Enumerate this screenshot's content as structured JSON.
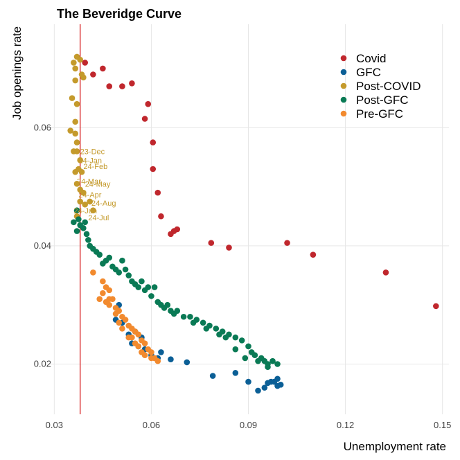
{
  "chart_data": {
    "type": "scatter",
    "title": "The Beveridge Curve",
    "xlabel": "Unemployment rate",
    "ylabel": "Job openings rate",
    "xlim": [
      0.0265,
      0.152
    ],
    "ylim": [
      0.0115,
      0.0775
    ],
    "xticks": [
      "0.03",
      "0.06",
      "0.09",
      "0.12",
      "0.15"
    ],
    "xtick_values": [
      0.03,
      0.06,
      0.09,
      0.12,
      0.15
    ],
    "yticks": [
      "0.02",
      "0.04",
      "0.06"
    ],
    "ytick_values": [
      0.02,
      0.04,
      0.06
    ],
    "grid": true,
    "legend_position": "top-right",
    "reference_line": {
      "x": 0.038,
      "color": "#d7191c"
    },
    "series": [
      {
        "name": "Covid",
        "color": "#c0272d",
        "points": [
          [
            0.0395,
            0.071
          ],
          [
            0.042,
            0.069
          ],
          [
            0.045,
            0.07
          ],
          [
            0.047,
            0.067
          ],
          [
            0.051,
            0.067
          ],
          [
            0.054,
            0.0675
          ],
          [
            0.059,
            0.064
          ],
          [
            0.058,
            0.0615
          ],
          [
            0.0605,
            0.0575
          ],
          [
            0.0605,
            0.053
          ],
          [
            0.062,
            0.049
          ],
          [
            0.063,
            0.045
          ],
          [
            0.067,
            0.0425
          ],
          [
            0.068,
            0.0428
          ],
          [
            0.066,
            0.042
          ],
          [
            0.0785,
            0.0405
          ],
          [
            0.084,
            0.0397
          ],
          [
            0.102,
            0.0405
          ],
          [
            0.11,
            0.0385
          ],
          [
            0.1325,
            0.0355
          ],
          [
            0.148,
            0.0298
          ]
        ]
      },
      {
        "name": "GFC",
        "color": "#0b5f96",
        "points": [
          [
            0.05,
            0.03
          ],
          [
            0.049,
            0.0275
          ],
          [
            0.051,
            0.027
          ],
          [
            0.053,
            0.025
          ],
          [
            0.055,
            0.0255
          ],
          [
            0.057,
            0.0245
          ],
          [
            0.054,
            0.0235
          ],
          [
            0.056,
            0.023
          ],
          [
            0.058,
            0.0225
          ],
          [
            0.06,
            0.0215
          ],
          [
            0.063,
            0.022
          ],
          [
            0.062,
            0.021
          ],
          [
            0.066,
            0.0208
          ],
          [
            0.071,
            0.0203
          ],
          [
            0.079,
            0.018
          ],
          [
            0.086,
            0.0185
          ],
          [
            0.09,
            0.017
          ],
          [
            0.093,
            0.0155
          ],
          [
            0.095,
            0.016
          ],
          [
            0.097,
            0.017
          ],
          [
            0.099,
            0.0175
          ],
          [
            0.1,
            0.0165
          ],
          [
            0.096,
            0.0168
          ],
          [
            0.098,
            0.017
          ],
          [
            0.099,
            0.0163
          ]
        ]
      },
      {
        "name": "Post-COVID",
        "color": "#c49a2c",
        "points": [
          [
            0.036,
            0.071
          ],
          [
            0.0365,
            0.07
          ],
          [
            0.037,
            0.072
          ],
          [
            0.038,
            0.0715
          ],
          [
            0.0385,
            0.069
          ],
          [
            0.039,
            0.0685
          ],
          [
            0.0365,
            0.068
          ],
          [
            0.0355,
            0.065
          ],
          [
            0.037,
            0.064
          ],
          [
            0.0365,
            0.061
          ],
          [
            0.035,
            0.0595
          ],
          [
            0.0365,
            0.059
          ],
          [
            0.037,
            0.0575
          ],
          [
            0.036,
            0.056
          ],
          [
            0.037,
            0.056
          ],
          [
            0.038,
            0.0545
          ],
          [
            0.0375,
            0.053
          ],
          [
            0.0365,
            0.0525
          ],
          [
            0.0385,
            0.0525
          ],
          [
            0.037,
            0.0505
          ],
          [
            0.038,
            0.0495
          ],
          [
            0.039,
            0.049
          ],
          [
            0.0395,
            0.047
          ],
          [
            0.038,
            0.0475
          ],
          [
            0.041,
            0.0475
          ],
          [
            0.042,
            0.046
          ],
          [
            0.037,
            0.045
          ]
        ]
      },
      {
        "name": "Post-GFC",
        "color": "#0a7a55",
        "points": [
          [
            0.037,
            0.046
          ],
          [
            0.0375,
            0.0445
          ],
          [
            0.036,
            0.044
          ],
          [
            0.038,
            0.0435
          ],
          [
            0.039,
            0.043
          ],
          [
            0.037,
            0.0425
          ],
          [
            0.0395,
            0.044
          ],
          [
            0.04,
            0.042
          ],
          [
            0.0405,
            0.041
          ],
          [
            0.041,
            0.04
          ],
          [
            0.042,
            0.0395
          ],
          [
            0.043,
            0.039
          ],
          [
            0.044,
            0.0385
          ],
          [
            0.045,
            0.037
          ],
          [
            0.046,
            0.0375
          ],
          [
            0.047,
            0.038
          ],
          [
            0.048,
            0.0365
          ],
          [
            0.049,
            0.036
          ],
          [
            0.05,
            0.0355
          ],
          [
            0.051,
            0.0375
          ],
          [
            0.052,
            0.036
          ],
          [
            0.053,
            0.035
          ],
          [
            0.054,
            0.034
          ],
          [
            0.055,
            0.0335
          ],
          [
            0.056,
            0.033
          ],
          [
            0.057,
            0.034
          ],
          [
            0.058,
            0.0325
          ],
          [
            0.059,
            0.033
          ],
          [
            0.06,
            0.0315
          ],
          [
            0.061,
            0.033
          ],
          [
            0.062,
            0.0305
          ],
          [
            0.063,
            0.03
          ],
          [
            0.064,
            0.0295
          ],
          [
            0.065,
            0.03
          ],
          [
            0.066,
            0.029
          ],
          [
            0.067,
            0.0285
          ],
          [
            0.068,
            0.029
          ],
          [
            0.07,
            0.028
          ],
          [
            0.072,
            0.028
          ],
          [
            0.074,
            0.0275
          ],
          [
            0.076,
            0.027
          ],
          [
            0.078,
            0.0265
          ],
          [
            0.08,
            0.026
          ],
          [
            0.082,
            0.0255
          ],
          [
            0.084,
            0.025
          ],
          [
            0.086,
            0.0245
          ],
          [
            0.088,
            0.024
          ],
          [
            0.09,
            0.023
          ],
          [
            0.091,
            0.022
          ],
          [
            0.092,
            0.0215
          ],
          [
            0.094,
            0.021
          ],
          [
            0.095,
            0.0205
          ],
          [
            0.096,
            0.02
          ],
          [
            0.0975,
            0.0205
          ],
          [
            0.099,
            0.02
          ],
          [
            0.096,
            0.0195
          ],
          [
            0.093,
            0.0205
          ],
          [
            0.089,
            0.021
          ],
          [
            0.086,
            0.0225
          ],
          [
            0.083,
            0.0245
          ],
          [
            0.081,
            0.025
          ],
          [
            0.077,
            0.026
          ],
          [
            0.073,
            0.027
          ]
        ]
      },
      {
        "name": "Pre-GFC",
        "color": "#f28a2e",
        "points": [
          [
            0.042,
            0.0355
          ],
          [
            0.045,
            0.034
          ],
          [
            0.046,
            0.033
          ],
          [
            0.047,
            0.0325
          ],
          [
            0.045,
            0.032
          ],
          [
            0.044,
            0.031
          ],
          [
            0.046,
            0.0305
          ],
          [
            0.047,
            0.03
          ],
          [
            0.048,
            0.031
          ],
          [
            0.049,
            0.0295
          ],
          [
            0.05,
            0.029
          ],
          [
            0.051,
            0.028
          ],
          [
            0.052,
            0.0275
          ],
          [
            0.05,
            0.027
          ],
          [
            0.053,
            0.0265
          ],
          [
            0.054,
            0.026
          ],
          [
            0.055,
            0.0255
          ],
          [
            0.056,
            0.025
          ],
          [
            0.054,
            0.0245
          ],
          [
            0.057,
            0.024
          ],
          [
            0.058,
            0.0235
          ],
          [
            0.056,
            0.023
          ],
          [
            0.059,
            0.0225
          ],
          [
            0.06,
            0.022
          ],
          [
            0.058,
            0.0215
          ],
          [
            0.061,
            0.021
          ],
          [
            0.062,
            0.0205
          ],
          [
            0.06,
            0.021
          ],
          [
            0.057,
            0.022
          ],
          [
            0.055,
            0.0235
          ],
          [
            0.053,
            0.0245
          ],
          [
            0.051,
            0.026
          ],
          [
            0.049,
            0.0285
          ],
          [
            0.047,
            0.031
          ]
        ]
      }
    ],
    "annotations": [
      {
        "text": "23-Dec",
        "x": 0.038,
        "y": 0.0555
      },
      {
        "text": "24-Jan",
        "x": 0.0375,
        "y": 0.054
      },
      {
        "text": "24-Feb",
        "x": 0.039,
        "y": 0.053
      },
      {
        "text": "24-Mar",
        "x": 0.037,
        "y": 0.0505
      },
      {
        "text": "24-May",
        "x": 0.0395,
        "y": 0.05
      },
      {
        "text": "24-Apr",
        "x": 0.0375,
        "y": 0.0482
      },
      {
        "text": "24-Aug",
        "x": 0.0415,
        "y": 0.0468
      },
      {
        "text": "24-Jun",
        "x": 0.036,
        "y": 0.0455
      },
      {
        "text": "24-Jul",
        "x": 0.0405,
        "y": 0.0443
      }
    ]
  }
}
